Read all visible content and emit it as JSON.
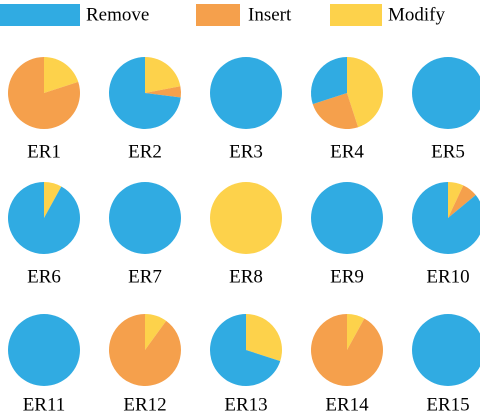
{
  "chart_data": {
    "type": "pie",
    "categories": [
      "ER1",
      "ER2",
      "ER3",
      "ER4",
      "ER5",
      "ER6",
      "ER7",
      "ER8",
      "ER9",
      "ER10",
      "ER11",
      "ER12",
      "ER13",
      "ER14",
      "ER15"
    ],
    "series": [
      {
        "name": "Remove",
        "color": "#30abe2",
        "values": [
          0,
          73,
          100,
          30,
          100,
          92,
          100,
          0,
          100,
          86,
          100,
          0,
          70,
          0,
          100
        ]
      },
      {
        "name": "Insert",
        "color": "#f5a04c",
        "values": [
          80,
          5,
          0,
          25,
          0,
          0,
          0,
          0,
          0,
          7,
          0,
          90,
          0,
          92,
          0
        ]
      },
      {
        "name": "Modify",
        "color": "#fdd24b",
        "values": [
          20,
          22,
          0,
          45,
          0,
          8,
          0,
          100,
          0,
          7,
          0,
          10,
          30,
          8,
          0
        ]
      }
    ]
  }
}
